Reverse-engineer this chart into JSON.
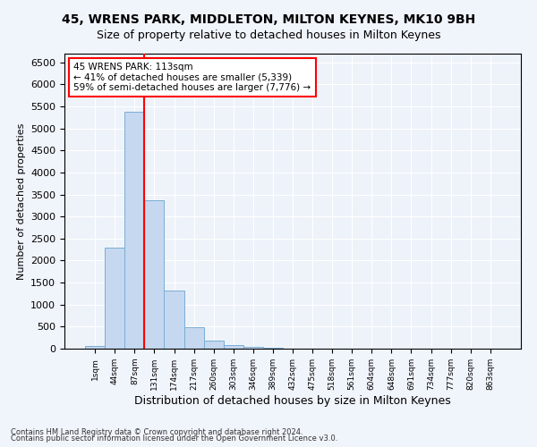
{
  "title1": "45, WRENS PARK, MIDDLETON, MILTON KEYNES, MK10 9BH",
  "title2": "Size of property relative to detached houses in Milton Keynes",
  "xlabel": "Distribution of detached houses by size in Milton Keynes",
  "ylabel": "Number of detached properties",
  "bin_labels": [
    "1sqm",
    "44sqm",
    "87sqm",
    "131sqm",
    "174sqm",
    "217sqm",
    "260sqm",
    "303sqm",
    "346sqm",
    "389sqm",
    "432sqm",
    "475sqm",
    "518sqm",
    "561sqm",
    "604sqm",
    "648sqm",
    "691sqm",
    "734sqm",
    "777sqm",
    "820sqm",
    "863sqm"
  ],
  "bar_values": [
    70,
    2300,
    5390,
    3380,
    1310,
    480,
    185,
    90,
    50,
    30,
    0,
    0,
    0,
    0,
    0,
    0,
    0,
    0,
    0,
    0,
    0
  ],
  "bar_color": "#c5d8f0",
  "bar_edge_color": "#7aadd4",
  "vline_color": "red",
  "annotation_text": "45 WRENS PARK: 113sqm\n← 41% of detached houses are smaller (5,339)\n59% of semi-detached houses are larger (7,776) →",
  "annotation_box_color": "white",
  "annotation_box_edge_color": "red",
  "ylim": [
    0,
    6700
  ],
  "yticks": [
    0,
    500,
    1000,
    1500,
    2000,
    2500,
    3000,
    3500,
    4000,
    4500,
    5000,
    5500,
    6000,
    6500
  ],
  "footer1": "Contains HM Land Registry data © Crown copyright and database right 2024.",
  "footer2": "Contains public sector information licensed under the Open Government Licence v3.0.",
  "bg_color": "#eef3fa",
  "fig_bg_color": "#f0f4fb",
  "grid_color": "white",
  "title1_fontsize": 10,
  "title2_fontsize": 9,
  "vline_x": 2.5
}
